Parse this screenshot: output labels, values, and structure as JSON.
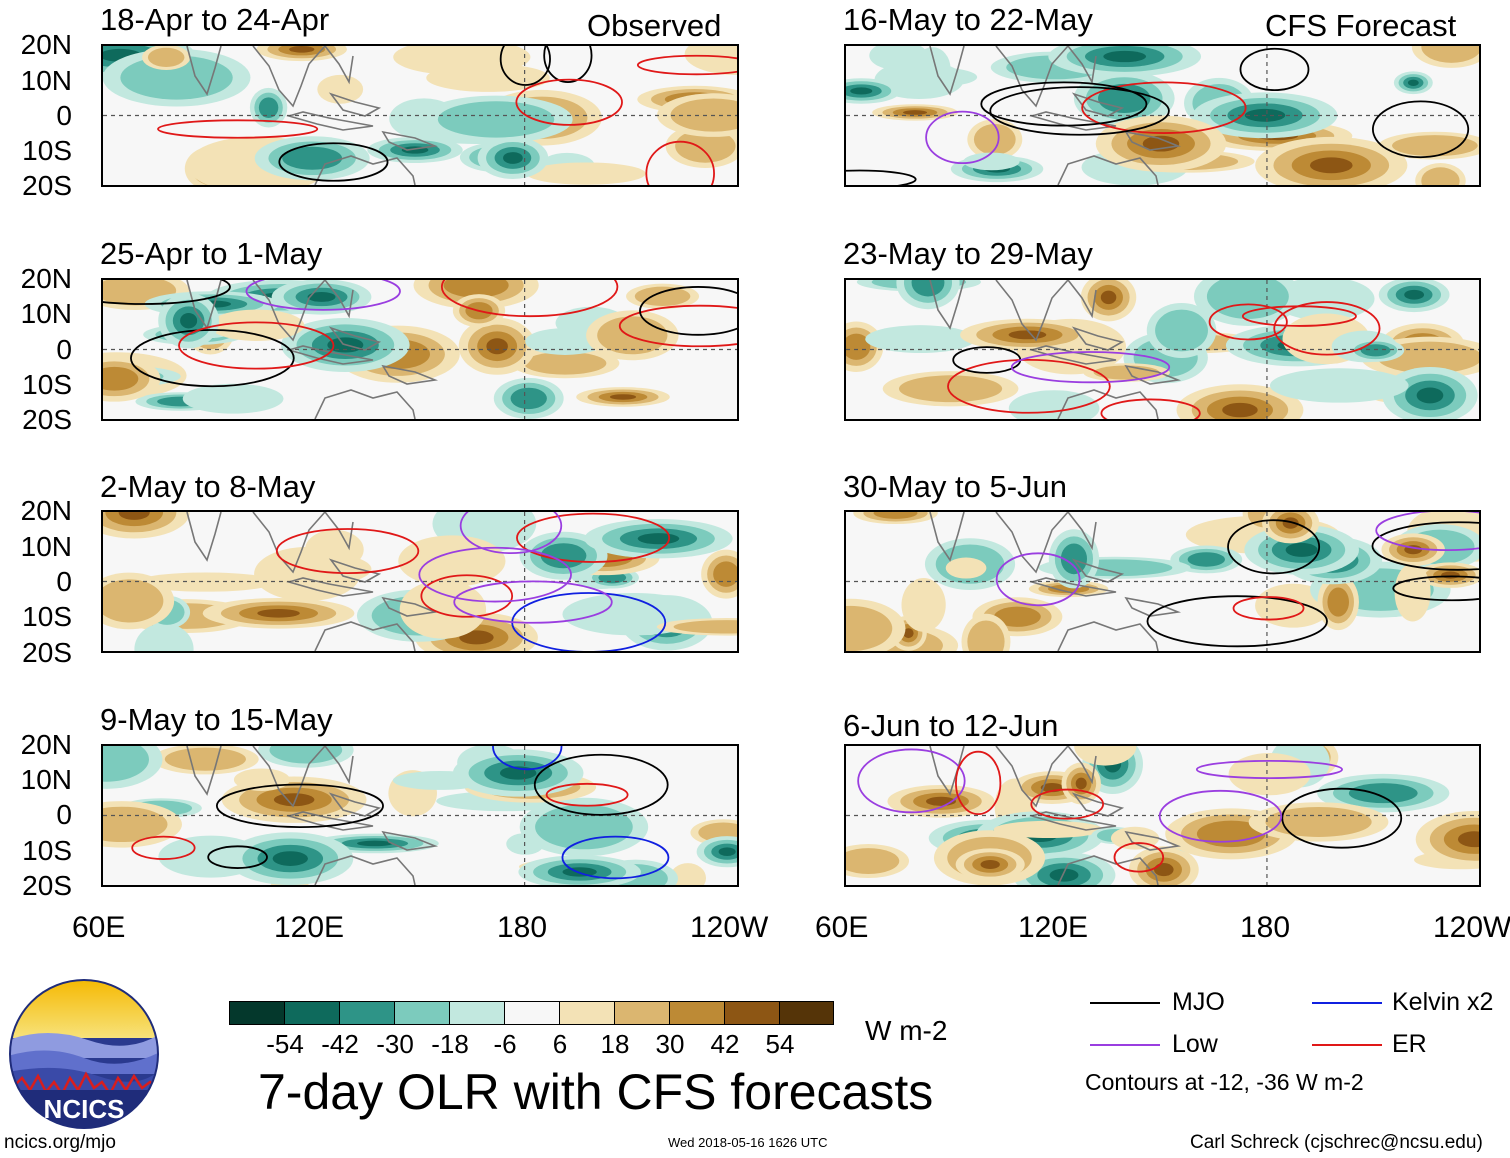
{
  "headers": {
    "left": "Observed",
    "right": "CFS Forecast"
  },
  "observed_panels": [
    {
      "title": "18-Apr to 24-Apr"
    },
    {
      "title": "25-Apr to 1-May"
    },
    {
      "title": "2-May to 8-May"
    },
    {
      "title": "9-May to 15-May"
    }
  ],
  "forecast_panels": [
    {
      "title": "16-May to 22-May"
    },
    {
      "title": "23-May to 29-May"
    },
    {
      "title": "30-May to 5-Jun"
    },
    {
      "title": "6-Jun to 12-Jun"
    }
  ],
  "lat_labels": [
    "20N",
    "10N",
    "0",
    "10S",
    "20S"
  ],
  "lon_labels": [
    "60E",
    "120E",
    "180",
    "120W"
  ],
  "colorbar": {
    "unit": "W m-2",
    "colors": [
      "#04382c",
      "#0e6a5c",
      "#2e9487",
      "#7ccbbd",
      "#c2e8df",
      "#f7f7f7",
      "#f3e2b6",
      "#dbb670",
      "#bd8a35",
      "#8d5614",
      "#553408"
    ],
    "labels": [
      "-54",
      "-42",
      "-30",
      "-18",
      "-6",
      "6",
      "18",
      "30",
      "42",
      "54"
    ]
  },
  "title": "7-day OLR with CFS forecasts",
  "legend": {
    "items": [
      {
        "label": "MJO",
        "color": "#000000"
      },
      {
        "label": "Kelvin x2",
        "color": "#1020e0"
      },
      {
        "label": "Low",
        "color": "#9a3ee0"
      },
      {
        "label": "ER",
        "color": "#e01818"
      }
    ],
    "note": "Contours at -12, -36 W m-2"
  },
  "logo": {
    "text": "NCICS"
  },
  "footer": {
    "left": "ncics.org/mjo",
    "center": "Wed 2018-05-16 1626 UTC",
    "right": "Carl Schreck (cjschrec@ncsu.edu)"
  }
}
